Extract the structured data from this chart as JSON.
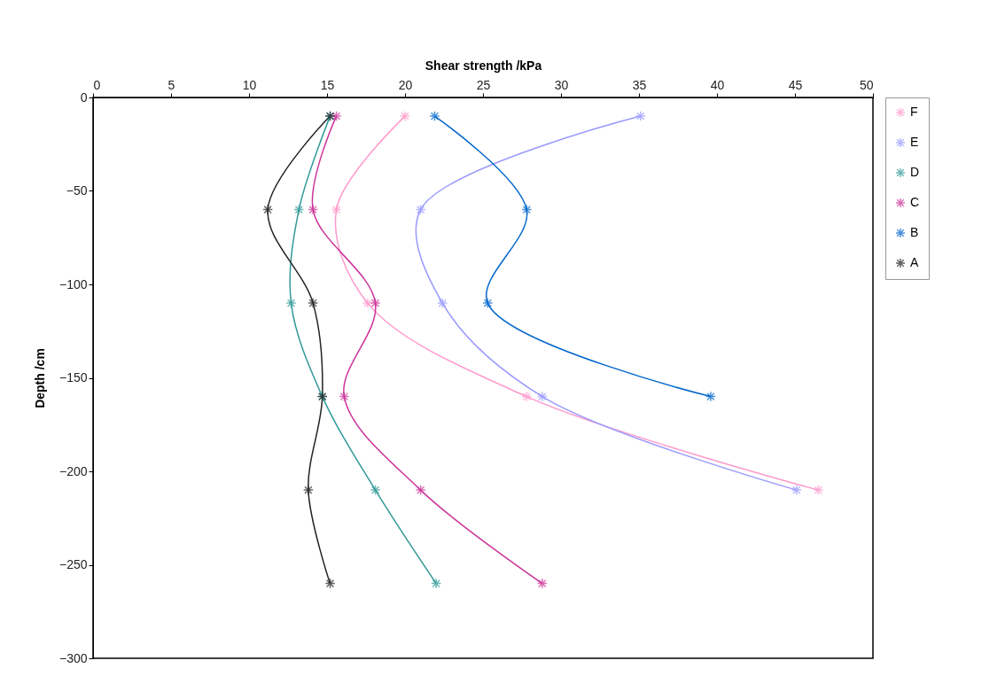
{
  "chart_data": {
    "type": "line",
    "xlabel": "Shear strength /kPa",
    "ylabel": "Depth /cm",
    "xlim": [
      0,
      50
    ],
    "xticks": [
      0,
      5,
      10,
      15,
      20,
      25,
      30,
      35,
      40,
      45,
      50
    ],
    "ylim": [
      -300,
      0
    ],
    "yticks": [
      -300,
      -250,
      -200,
      -150,
      -100,
      -50,
      0
    ],
    "grid": false,
    "legend": "right",
    "marker": "cross",
    "series": [
      {
        "name": "F",
        "color": "#ff99cc",
        "x": [
          20.0,
          15.6,
          17.6,
          27.8,
          46.5
        ],
        "values": [
          -10,
          -60,
          -110,
          -160,
          -210
        ]
      },
      {
        "name": "E",
        "color": "#9999ff",
        "x": [
          35.1,
          21.0,
          22.4,
          28.8,
          45.1
        ],
        "values": [
          -10,
          -60,
          -110,
          -160,
          -210
        ]
      },
      {
        "name": "D",
        "color": "#339999",
        "x": [
          15.2,
          13.2,
          12.7,
          14.7,
          18.1,
          22.0
        ],
        "values": [
          -10,
          -60,
          -110,
          -160,
          -210,
          -260
        ]
      },
      {
        "name": "C",
        "color": "#cc3399",
        "x": [
          15.6,
          14.1,
          18.1,
          16.1,
          21.0,
          28.8
        ],
        "values": [
          -10,
          -60,
          -110,
          -160,
          -210,
          -260
        ]
      },
      {
        "name": "B",
        "color": "#0066cc",
        "x": [
          21.9,
          27.8,
          25.3,
          39.6
        ],
        "values": [
          -10,
          -60,
          -110,
          -160
        ]
      },
      {
        "name": "A",
        "color": "#222222",
        "x": [
          15.2,
          11.2,
          14.1,
          14.7,
          13.8,
          15.2
        ],
        "values": [
          -10,
          -60,
          -110,
          -160,
          -210,
          -260
        ]
      }
    ]
  }
}
